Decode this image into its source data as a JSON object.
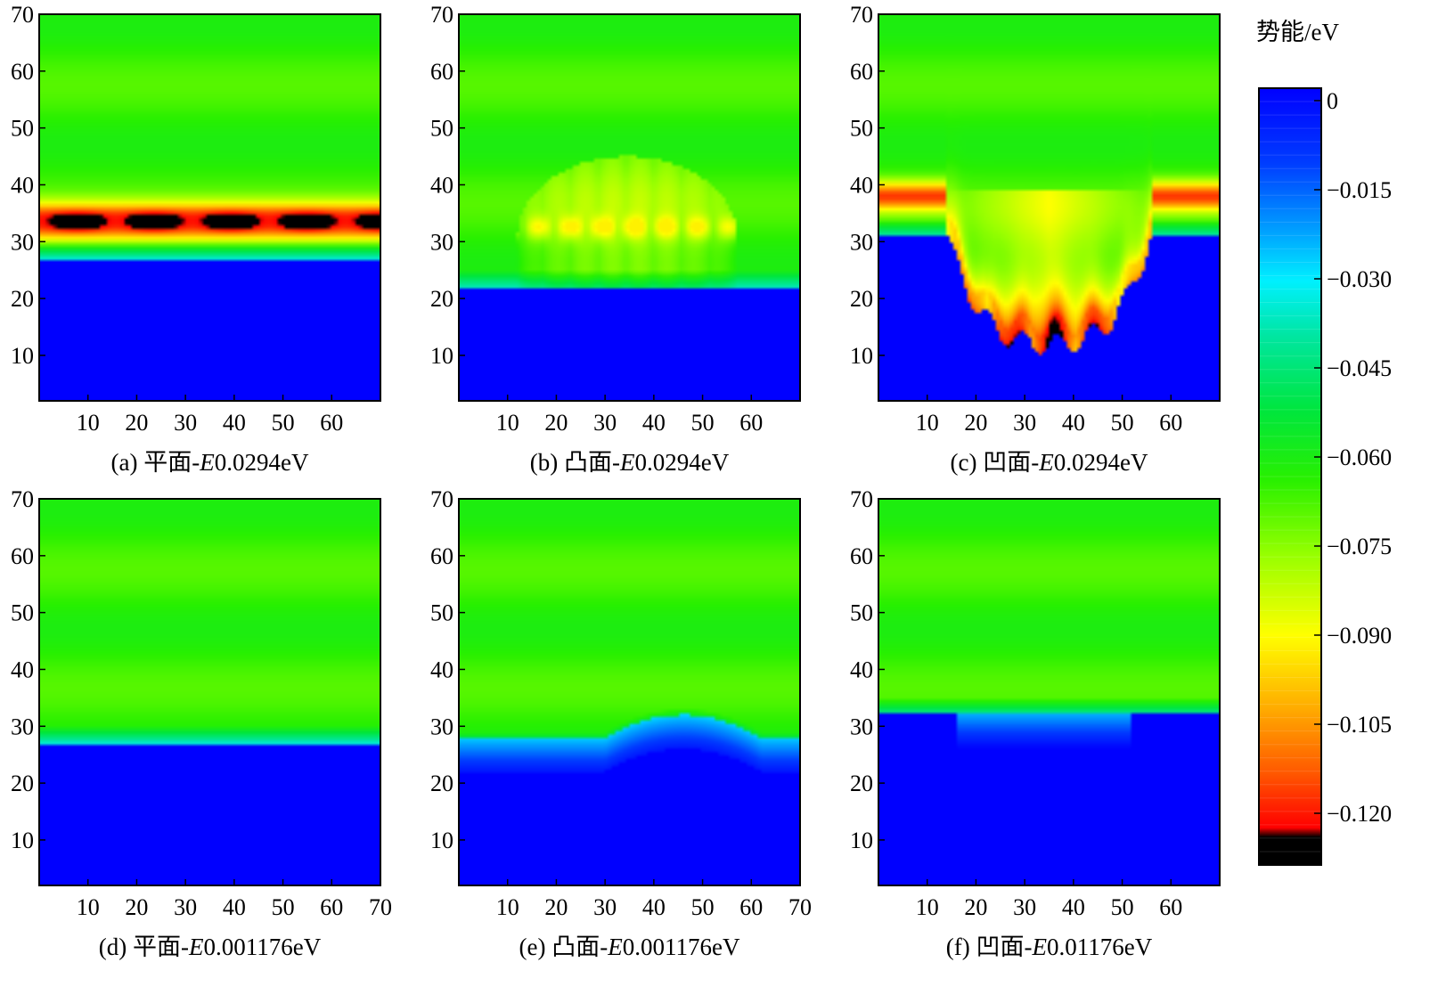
{
  "chart_data": {
    "type": "heatmap",
    "colorbar": {
      "title": "势能/eV",
      "tick_labels": [
        "0",
        "−0.015",
        "−0.030",
        "−0.045",
        "−0.060",
        "−0.075",
        "−0.090",
        "−0.105",
        "−0.120"
      ],
      "tick_values": [
        0,
        -0.015,
        -0.03,
        -0.045,
        -0.06,
        -0.075,
        -0.09,
        -0.105,
        -0.12
      ],
      "range": [
        -0.125,
        0
      ]
    },
    "panels": [
      {
        "id": "a",
        "caption": {
          "prefix": "(a) 平面-",
          "var": "E",
          "value": "0.0294eV"
        },
        "x_tick_labels": [
          "10",
          "20",
          "30",
          "40",
          "50",
          "60"
        ],
        "y_tick_labels": [
          "10",
          "20",
          "30",
          "40",
          "50",
          "60",
          "70"
        ],
        "xlim": [
          0,
          70
        ],
        "ylim": [
          0,
          70
        ],
        "profile": {
          "kind": "flat",
          "surface_y": 27,
          "band_y": 33.5,
          "band_min_energy": -0.125
        }
      },
      {
        "id": "b",
        "caption": {
          "prefix": "(b) 凸面-",
          "var": "E",
          "value": "0.0294eV"
        },
        "x_tick_labels": [
          "10",
          "20",
          "30",
          "40",
          "50",
          "60"
        ],
        "y_tick_labels": [
          "10",
          "20",
          "30",
          "40",
          "50",
          "60",
          "70"
        ],
        "xlim": [
          0,
          70
        ],
        "ylim": [
          0,
          70
        ],
        "profile": {
          "kind": "convex",
          "surface_y": 22,
          "bump_range": [
            12,
            57
          ],
          "bump_top_y": 45,
          "min_energy": -0.09
        }
      },
      {
        "id": "c",
        "caption": {
          "prefix": "(c) 凹面-",
          "var": "E",
          "value": "0.0294eV"
        },
        "x_tick_labels": [
          "10",
          "20",
          "30",
          "40",
          "50",
          "60"
        ],
        "y_tick_labels": [
          "10",
          "20",
          "30",
          "40",
          "50",
          "60",
          "70"
        ],
        "xlim": [
          0,
          70
        ],
        "ylim": [
          0,
          70
        ],
        "profile": {
          "kind": "concave",
          "surface_y": 31,
          "pit_range": [
            14,
            56
          ],
          "pit_bottom_y": 12,
          "band_y": 38,
          "band_min_energy": -0.11
        }
      },
      {
        "id": "d",
        "caption": {
          "prefix": "(d) 平面-",
          "var": "E",
          "value": "0.001176eV"
        },
        "x_tick_labels": [
          "10",
          "20",
          "30",
          "40",
          "50",
          "60",
          "70"
        ],
        "y_tick_labels": [
          "10",
          "20",
          "30",
          "40",
          "50",
          "60",
          "70"
        ],
        "xlim": [
          0,
          70
        ],
        "ylim": [
          0,
          70
        ],
        "profile": {
          "kind": "flat-weak",
          "surface_y": 27
        }
      },
      {
        "id": "e",
        "caption": {
          "prefix": "(e) 凸面-",
          "var": "E",
          "value": "0.001176eV"
        },
        "x_tick_labels": [
          "10",
          "20",
          "30",
          "40",
          "50",
          "60",
          "70"
        ],
        "y_tick_labels": [
          "10",
          "20",
          "30",
          "40",
          "50",
          "60",
          "70"
        ],
        "xlim": [
          0,
          70
        ],
        "ylim": [
          0,
          70
        ],
        "profile": {
          "kind": "convex-weak",
          "surface_y": 22,
          "bump_range": [
            30,
            62
          ]
        }
      },
      {
        "id": "f",
        "caption": {
          "prefix": "(f) 凹面-",
          "var": "E",
          "value": "0.01176eV"
        },
        "x_tick_labels": [
          "10",
          "20",
          "30",
          "40",
          "50",
          "60"
        ],
        "y_tick_labels": [
          "10",
          "20",
          "30",
          "40",
          "50",
          "60",
          "70"
        ],
        "xlim": [
          0,
          70
        ],
        "ylim": [
          0,
          70
        ],
        "profile": {
          "kind": "concave-weak",
          "surface_y": 32,
          "pit_range": [
            16,
            52
          ]
        }
      }
    ]
  }
}
